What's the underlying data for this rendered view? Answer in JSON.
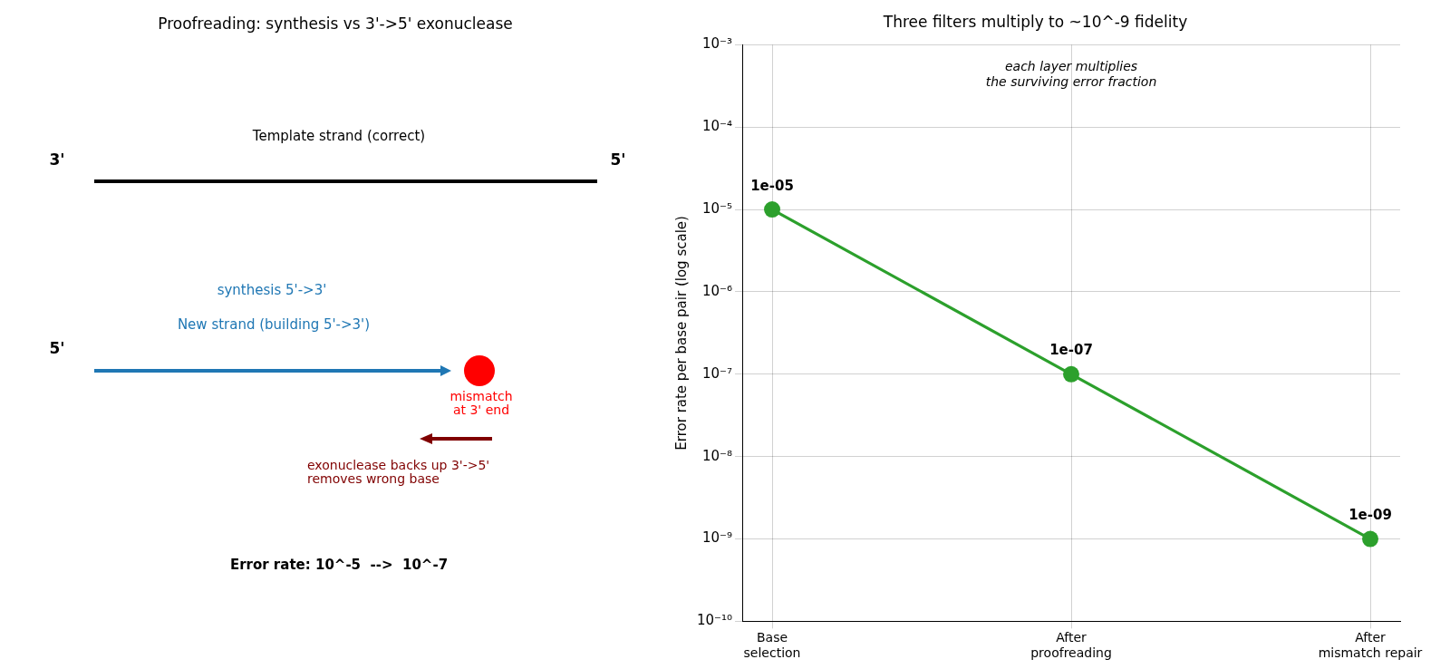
{
  "chart_data": [
    {
      "type": "other",
      "title": "Proofreading: synthesis vs 3'->5' exonuclease",
      "annotations": [
        "Template strand (correct)",
        "3'",
        "5'",
        "synthesis 5'->3'",
        "New strand (building 5'->3')",
        "5'",
        "mismatch\nat 3' end",
        "exonuclease backs up 3'->5'\nremoves wrong base",
        "Error rate: 10^-5  -->  10^-7"
      ]
    },
    {
      "type": "line",
      "title": "Three filters multiply to ~10^-9 fidelity",
      "ylabel": "Error rate per base pair (log scale)",
      "categories": [
        "Base\nselection",
        "After\nproofreading",
        "After\nmismatch repair"
      ],
      "series": [
        {
          "color": "#2ca02c",
          "values": [
            1e-05,
            1e-07,
            1e-09
          ],
          "value_labels": [
            "1e-05",
            "1e-07",
            "1e-09"
          ]
        }
      ],
      "log": "y",
      "ylim": [
        1e-10,
        0.001
      ],
      "yticks": [
        {
          "value": 1e-10,
          "label": "10⁻¹⁰"
        },
        {
          "value": 1e-09,
          "label": "10⁻⁹"
        },
        {
          "value": 1e-08,
          "label": "10⁻⁸"
        },
        {
          "value": 1e-07,
          "label": "10⁻⁷"
        },
        {
          "value": 1e-06,
          "label": "10⁻⁶"
        },
        {
          "value": 1e-05,
          "label": "10⁻⁵"
        },
        {
          "value": 0.0001,
          "label": "10⁻⁴"
        },
        {
          "value": 0.001,
          "label": "10⁻³"
        }
      ],
      "grid": true,
      "marker": "circle",
      "line_style": "solid",
      "annotations": [
        "each layer multiplies\nthe surviving error fraction"
      ]
    }
  ]
}
